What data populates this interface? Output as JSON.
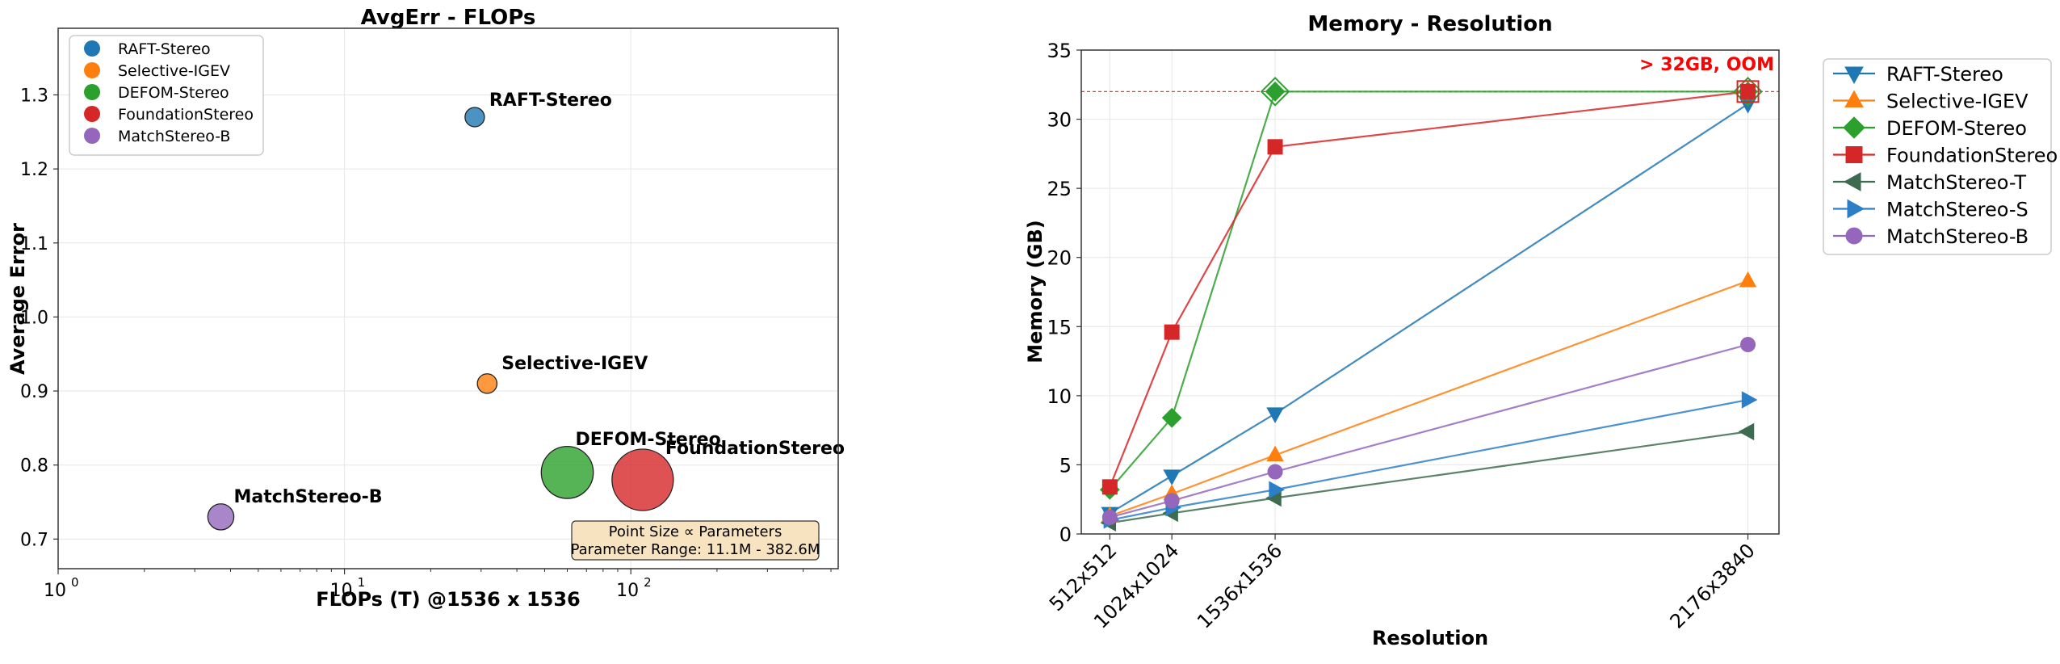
{
  "chart_data": [
    {
      "type": "scatter",
      "title": "AvgErr - FLOPs",
      "xlabel": "FLOPs (T) @1536 x 1536",
      "ylabel": "Average Error",
      "xscale": "log",
      "xlim": [
        1,
        530
      ],
      "ylim": [
        0.66,
        1.39
      ],
      "xticks": [
        1,
        10,
        100
      ],
      "xtick_labels": [
        "10",
        "10",
        "10"
      ],
      "xtick_exponents": [
        "0",
        "1",
        "2"
      ],
      "yticks": [
        0.7,
        0.8,
        0.9,
        1.0,
        1.1,
        1.2,
        1.3
      ],
      "ytick_labels": [
        "0.7",
        "0.8",
        "0.9",
        "1.0",
        "1.1",
        "1.2",
        "1.3"
      ],
      "grid": true,
      "legend_position": "top-left",
      "points": [
        {
          "name": "RAFT-Stereo",
          "x": 28.5,
          "y": 1.27,
          "params_m": 11.1,
          "color": "#1f77b4"
        },
        {
          "name": "Selective-IGEV",
          "x": 31.5,
          "y": 0.91,
          "params_m": 13.0,
          "color": "#ff7f0e"
        },
        {
          "name": "DEFOM-Stereo",
          "x": 60,
          "y": 0.79,
          "params_m": 300,
          "color": "#2ca02c"
        },
        {
          "name": "FoundationStereo",
          "x": 110,
          "y": 0.78,
          "params_m": 382.6,
          "color": "#d62728"
        },
        {
          "name": "MatchStereo-B",
          "x": 3.7,
          "y": 0.73,
          "params_m": 70,
          "color": "#9467bd"
        }
      ],
      "note": {
        "line1": "Point Size ∝ Parameters",
        "line2": "Parameter Range: 11.1M - 382.6M"
      }
    },
    {
      "type": "line",
      "title": "Memory - Resolution",
      "xlabel": "Resolution",
      "ylabel": "Memory (GB)",
      "categories": [
        "512x512",
        "1024x1024",
        "1536x1536",
        "2176x3840"
      ],
      "x": [
        0.262,
        1.049,
        2.359,
        8.356
      ],
      "xlim": [
        -0.1,
        8.75
      ],
      "ylim": [
        0,
        35
      ],
      "yticks": [
        0,
        5,
        10,
        15,
        20,
        25,
        30,
        35
      ],
      "ytick_labels": [
        "0",
        "5",
        "10",
        "15",
        "20",
        "25",
        "30",
        "35"
      ],
      "grid": true,
      "legend_position": "outside-right",
      "oom_threshold": 32,
      "oom_label": "> 32GB, OOM",
      "oom_color": "#ff0000",
      "series": [
        {
          "name": "RAFT-Stereo",
          "values": [
            1.5,
            4.2,
            8.7,
            31.1
          ],
          "color": "#1f77b4",
          "marker": "triangle-down",
          "oom": [
            false,
            false,
            false,
            false
          ]
        },
        {
          "name": "Selective-IGEV",
          "values": [
            1.3,
            2.9,
            5.7,
            18.3
          ],
          "color": "#ff7f0e",
          "marker": "triangle-up",
          "oom": [
            false,
            false,
            false,
            false
          ]
        },
        {
          "name": "DEFOM-Stereo",
          "values": [
            3.2,
            8.4,
            32.0,
            32.0
          ],
          "color": "#2ca02c",
          "marker": "diamond",
          "oom": [
            false,
            false,
            true,
            true
          ]
        },
        {
          "name": "FoundationStereo",
          "values": [
            3.4,
            14.6,
            28.0,
            32.0
          ],
          "color": "#d62728",
          "marker": "square",
          "oom": [
            false,
            false,
            false,
            true
          ]
        },
        {
          "name": "MatchStereo-T",
          "values": [
            0.8,
            1.5,
            2.6,
            7.4
          ],
          "color": "#3d6b4f",
          "marker": "triangle-left",
          "oom": [
            false,
            false,
            false,
            false
          ]
        },
        {
          "name": "MatchStereo-S",
          "values": [
            1.0,
            1.9,
            3.2,
            9.7
          ],
          "color": "#2b7fc9",
          "marker": "triangle-right",
          "oom": [
            false,
            false,
            false,
            false
          ]
        },
        {
          "name": "MatchStereo-B",
          "values": [
            1.2,
            2.4,
            4.5,
            13.7
          ],
          "color": "#9467bd",
          "marker": "circle",
          "oom": [
            false,
            false,
            false,
            false
          ]
        }
      ]
    }
  ]
}
